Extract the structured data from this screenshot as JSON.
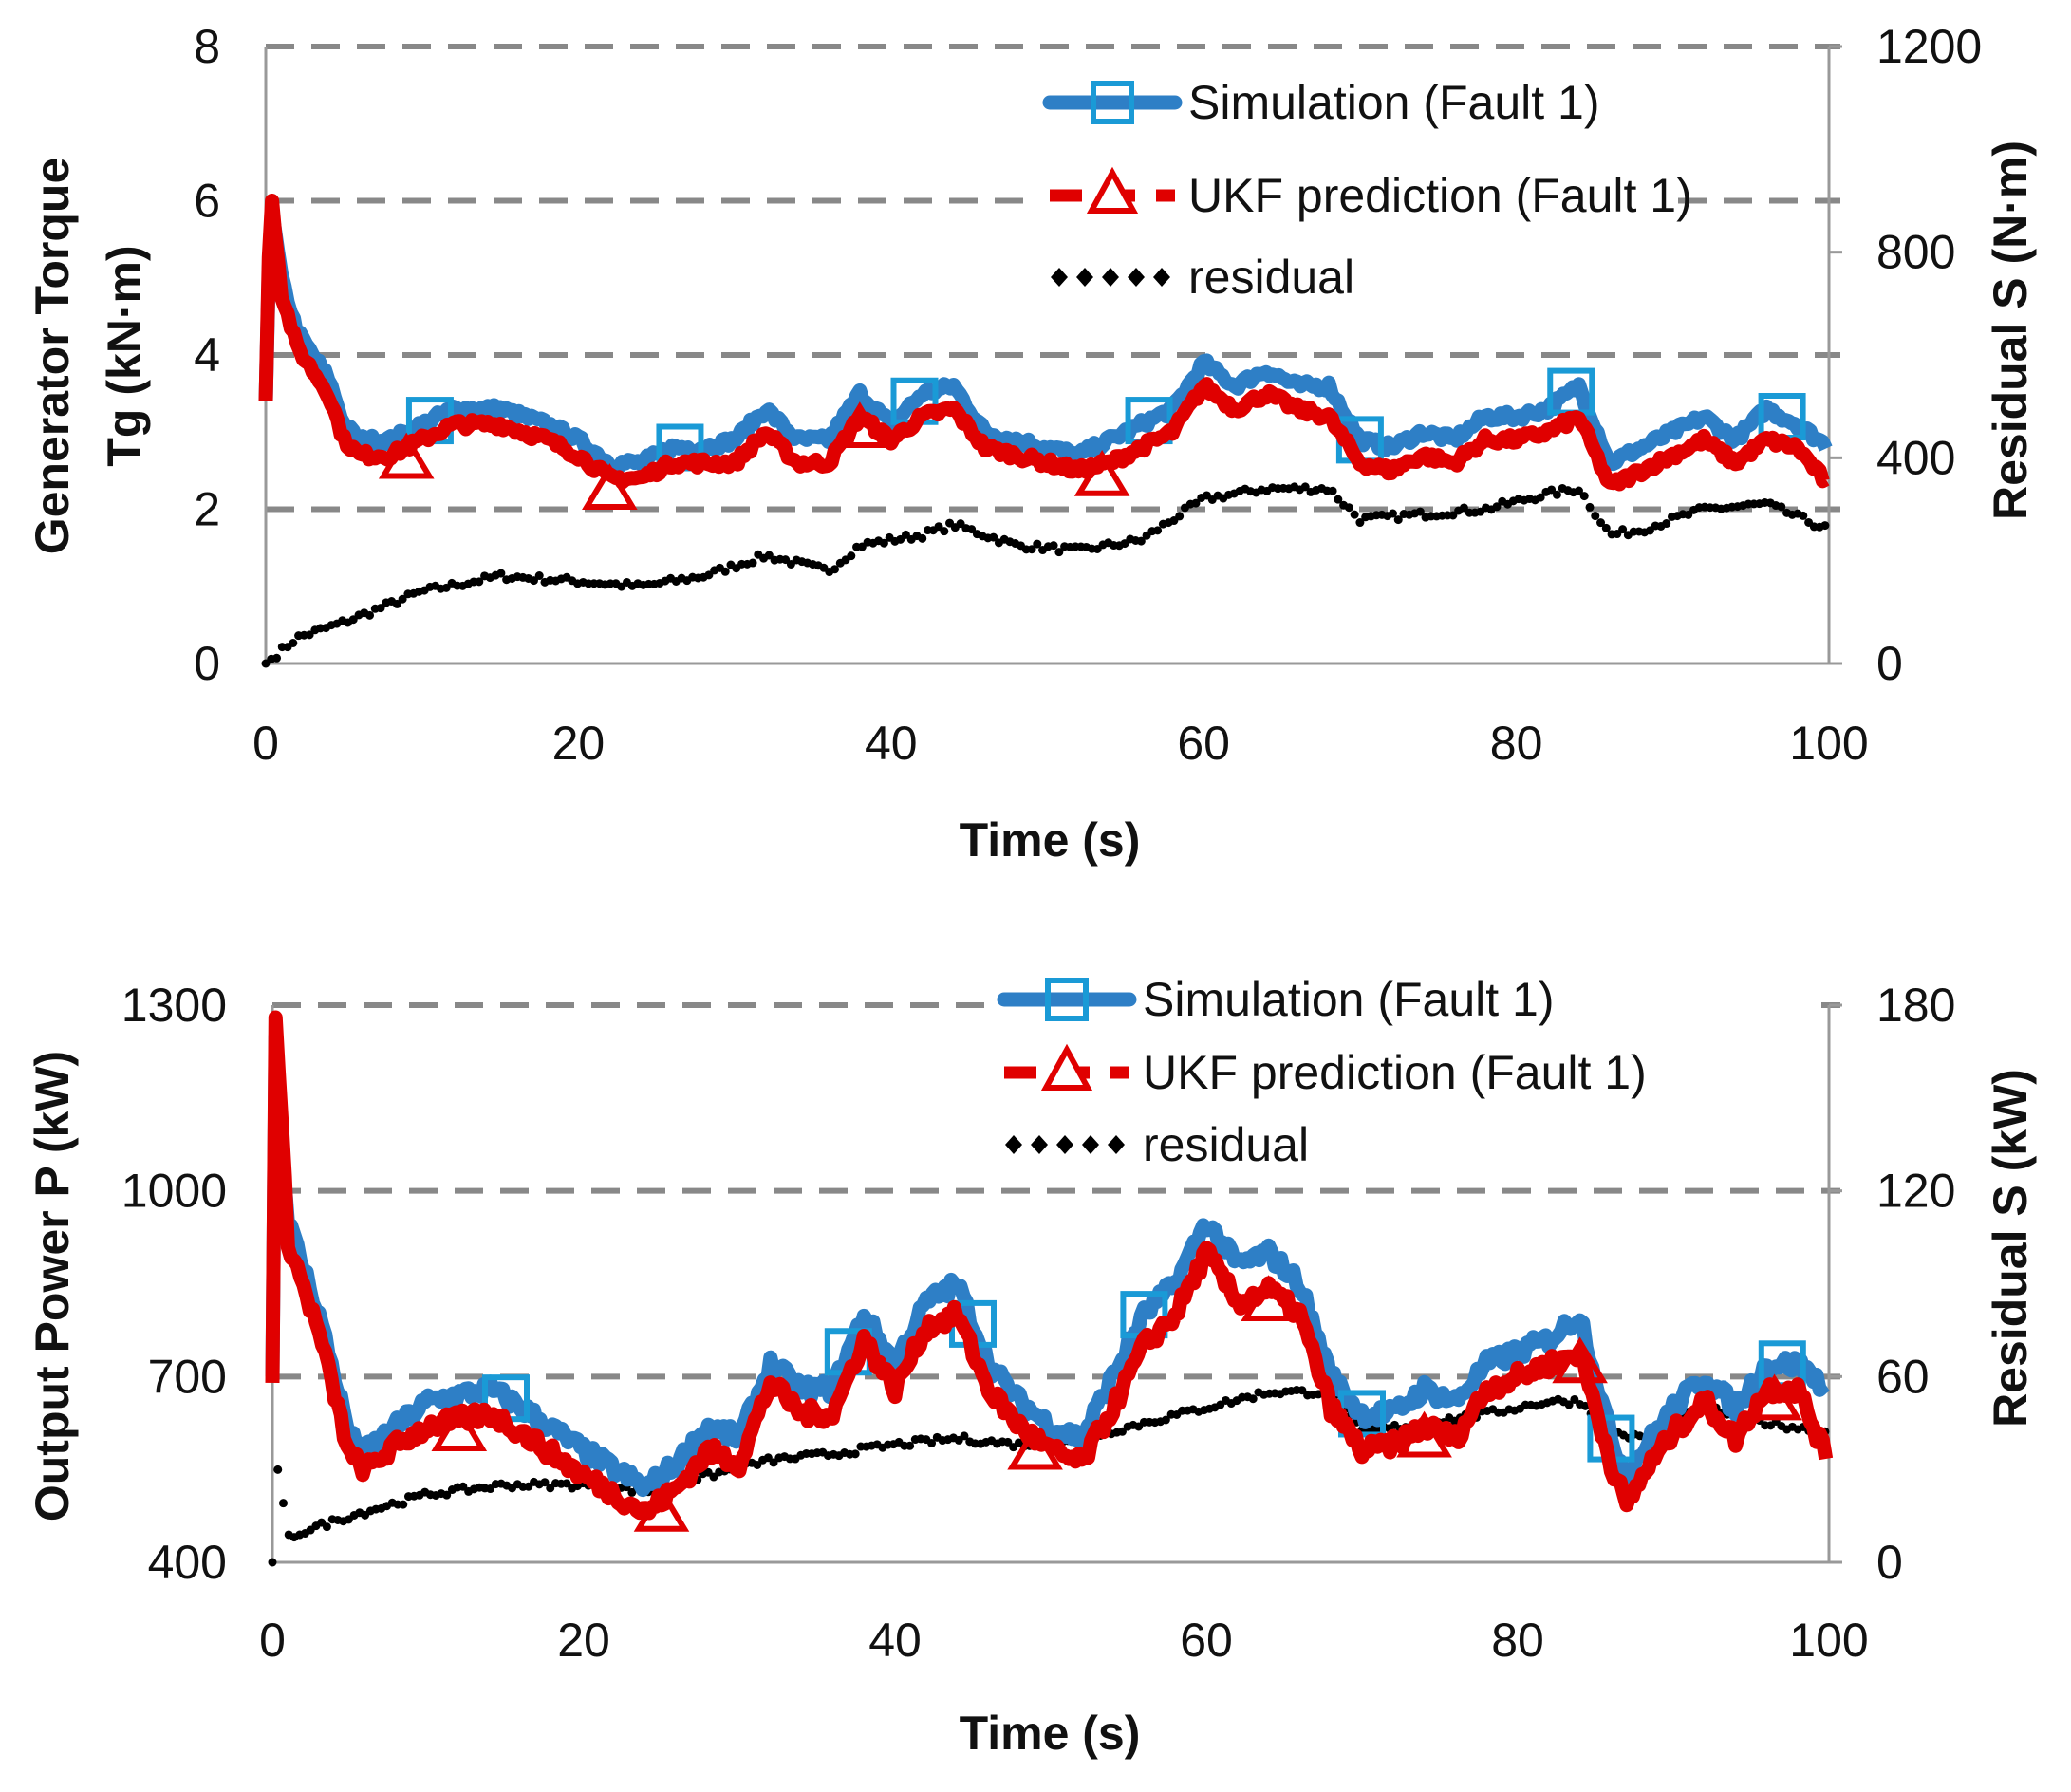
{
  "chart_data": [
    {
      "type": "line",
      "xlabel": "Time (s)",
      "ylabel_line1": "Generator Torque",
      "ylabel_line2": "Tg (kN·m)",
      "y2label": "Residual S (N·m)",
      "xlim": [
        0,
        100
      ],
      "ylim": [
        0,
        8
      ],
      "y2lim": [
        0,
        1200
      ],
      "xticks": [
        "0",
        "20",
        "40",
        "60",
        "80",
        "100"
      ],
      "yticks": [
        "0",
        "2",
        "4",
        "6",
        "8"
      ],
      "y2ticks": [
        "0",
        "400",
        "800",
        "1200"
      ],
      "grid": "horizontal dashed",
      "legend_position": "top-right",
      "legend": [
        "Simulation (Fault 1)",
        "UKF prediction (Fault 1)",
        "residual"
      ],
      "colors": {
        "simulation": "#2e7fc6",
        "ukf": "#e00000",
        "residual": "#000000"
      },
      "series": [
        {
          "name": "Simulation (Fault 1)",
          "axis": "left",
          "x": [
            0,
            0.3,
            1,
            2,
            3,
            4,
            5,
            6,
            8,
            10,
            12,
            15,
            18,
            20,
            22,
            24,
            26,
            28,
            30,
            32,
            34,
            36,
            38,
            40,
            42,
            44,
            46,
            48,
            50,
            52,
            54,
            56,
            58,
            60,
            62,
            64,
            66,
            68,
            70,
            72,
            74,
            76,
            78,
            80,
            82,
            84,
            86,
            88,
            90,
            92,
            94,
            96,
            98,
            100
          ],
          "y": [
            3.4,
            6.0,
            5.0,
            4.3,
            4.0,
            3.7,
            3.1,
            2.9,
            2.9,
            3.1,
            3.3,
            3.3,
            3.1,
            2.9,
            2.6,
            2.6,
            2.8,
            2.8,
            2.9,
            3.3,
            2.9,
            2.9,
            3.5,
            3.1,
            3.5,
            3.6,
            3.0,
            2.9,
            2.8,
            2.7,
            2.9,
            3.1,
            3.3,
            3.9,
            3.6,
            3.8,
            3.6,
            3.6,
            2.9,
            2.8,
            3.0,
            2.9,
            3.2,
            3.2,
            3.3,
            3.6,
            2.6,
            2.8,
            3.0,
            3.2,
            2.9,
            3.3,
            3.1,
            2.8
          ],
          "markers_x": [
            10.5,
            26.5,
            41.5,
            56.5,
            70,
            83.5,
            97
          ]
        },
        {
          "name": "UKF prediction (Fault 1)",
          "axis": "left",
          "x": [
            0,
            0.3,
            1,
            2,
            3,
            4,
            5,
            6,
            8,
            10,
            12,
            15,
            18,
            20,
            22,
            24,
            26,
            28,
            30,
            32,
            34,
            36,
            38,
            40,
            42,
            44,
            46,
            48,
            50,
            52,
            54,
            56,
            58,
            60,
            62,
            64,
            66,
            68,
            70,
            72,
            74,
            76,
            78,
            80,
            82,
            84,
            86,
            88,
            90,
            92,
            94,
            96,
            98,
            100
          ],
          "y": [
            3.4,
            6.2,
            4.8,
            4.1,
            3.8,
            3.5,
            2.9,
            2.7,
            2.7,
            2.9,
            3.1,
            3.1,
            2.9,
            2.7,
            2.4,
            2.4,
            2.6,
            2.6,
            2.6,
            3.0,
            2.6,
            2.6,
            3.2,
            2.9,
            3.2,
            3.3,
            2.8,
            2.7,
            2.6,
            2.5,
            2.6,
            2.8,
            3.0,
            3.6,
            3.3,
            3.5,
            3.3,
            3.2,
            2.6,
            2.5,
            2.7,
            2.6,
            2.9,
            2.9,
            3.0,
            3.2,
            2.3,
            2.5,
            2.7,
            2.9,
            2.6,
            2.9,
            2.8,
            2.3
          ],
          "markers_x": [
            9,
            22,
            38,
            53.5
          ]
        },
        {
          "name": "residual",
          "axis": "right",
          "x": [
            0,
            2,
            5,
            10,
            15,
            20,
            24,
            28,
            32,
            36,
            38,
            42,
            44,
            48,
            52,
            56,
            60,
            64,
            68,
            70,
            74,
            78,
            82,
            84,
            86,
            88,
            92,
            96,
            100
          ],
          "y": [
            0,
            50,
            80,
            140,
            170,
            160,
            150,
            170,
            210,
            180,
            230,
            250,
            270,
            230,
            220,
            240,
            320,
            340,
            340,
            280,
            290,
            300,
            330,
            340,
            250,
            260,
            300,
            310,
            260
          ]
        }
      ]
    },
    {
      "type": "line",
      "xlabel": "Time (s)",
      "ylabel": "Output Power P (kW)",
      "y2label": "Residual S (kW)",
      "xlim": [
        0,
        100
      ],
      "ylim": [
        400,
        1300
      ],
      "y2lim": [
        0,
        180
      ],
      "xticks": [
        "0",
        "20",
        "40",
        "60",
        "80",
        "100"
      ],
      "yticks": [
        "400",
        "700",
        "1000",
        "1300"
      ],
      "y2ticks": [
        "0",
        "60",
        "120",
        "180"
      ],
      "grid": "horizontal dashed",
      "legend_position": "top-right",
      "legend": [
        "Simulation (Fault 1)",
        "UKF prediction (Fault 1)",
        "residual"
      ],
      "colors": {
        "simulation": "#2e7fc6",
        "ukf": "#e00000",
        "residual": "#000000"
      },
      "series": [
        {
          "name": "Simulation (Fault 1)",
          "axis": "left",
          "x": [
            0,
            0.2,
            1,
            3,
            5,
            6,
            8,
            10,
            14,
            16,
            20,
            24,
            26,
            28,
            30,
            32,
            34,
            36,
            38,
            40,
            42,
            44,
            46,
            48,
            50,
            52,
            54,
            56,
            58,
            60,
            62,
            64,
            66,
            68,
            70,
            72,
            74,
            76,
            78,
            80,
            82,
            84,
            86,
            87,
            88,
            90,
            92,
            94,
            96,
            98,
            100
          ],
          "y": [
            700,
            1250,
            950,
            800,
            600,
            580,
            620,
            660,
            680,
            650,
            580,
            520,
            560,
            620,
            600,
            720,
            680,
            680,
            800,
            720,
            820,
            850,
            720,
            660,
            620,
            600,
            700,
            800,
            850,
            950,
            880,
            900,
            850,
            700,
            640,
            640,
            680,
            660,
            720,
            740,
            760,
            800,
            600,
            540,
            580,
            650,
            700,
            650,
            720,
            720,
            680
          ],
          "markers_x": [
            15,
            37,
            45,
            56,
            70,
            86,
            97
          ]
        },
        {
          "name": "UKF prediction (Fault 1)",
          "axis": "left",
          "x": [
            0,
            0.2,
            1,
            3,
            5,
            6,
            8,
            10,
            14,
            16,
            20,
            24,
            26,
            28,
            30,
            32,
            34,
            36,
            38,
            40,
            42,
            44,
            46,
            48,
            50,
            52,
            54,
            56,
            58,
            60,
            62,
            64,
            66,
            68,
            70,
            72,
            74,
            76,
            78,
            80,
            82,
            84,
            86,
            87,
            88,
            90,
            92,
            94,
            96,
            98,
            100
          ],
          "y": [
            690,
            1280,
            920,
            770,
            570,
            550,
            590,
            620,
            640,
            610,
            540,
            480,
            520,
            580,
            560,
            690,
            640,
            640,
            760,
            680,
            780,
            800,
            680,
            620,
            580,
            560,
            650,
            750,
            800,
            900,
            820,
            840,
            800,
            650,
            580,
            590,
            620,
            600,
            680,
            700,
            720,
            740,
            560,
            490,
            540,
            610,
            660,
            600,
            680,
            680,
            560
          ],
          "markers_x": [
            12,
            25,
            49,
            64,
            74,
            84,
            96.5
          ]
        },
        {
          "name": "residual",
          "axis": "right",
          "x": [
            0,
            0.2,
            1,
            2,
            5,
            10,
            15,
            20,
            24,
            28,
            32,
            36,
            40,
            44,
            48,
            52,
            56,
            60,
            64,
            68,
            70,
            74,
            78,
            82,
            84,
            86,
            88,
            92,
            96,
            100
          ],
          "y": [
            0,
            35,
            8,
            10,
            15,
            22,
            25,
            25,
            23,
            28,
            33,
            35,
            38,
            40,
            38,
            40,
            45,
            50,
            55,
            55,
            42,
            45,
            48,
            52,
            52,
            42,
            40,
            50,
            45,
            42
          ]
        }
      ]
    }
  ]
}
